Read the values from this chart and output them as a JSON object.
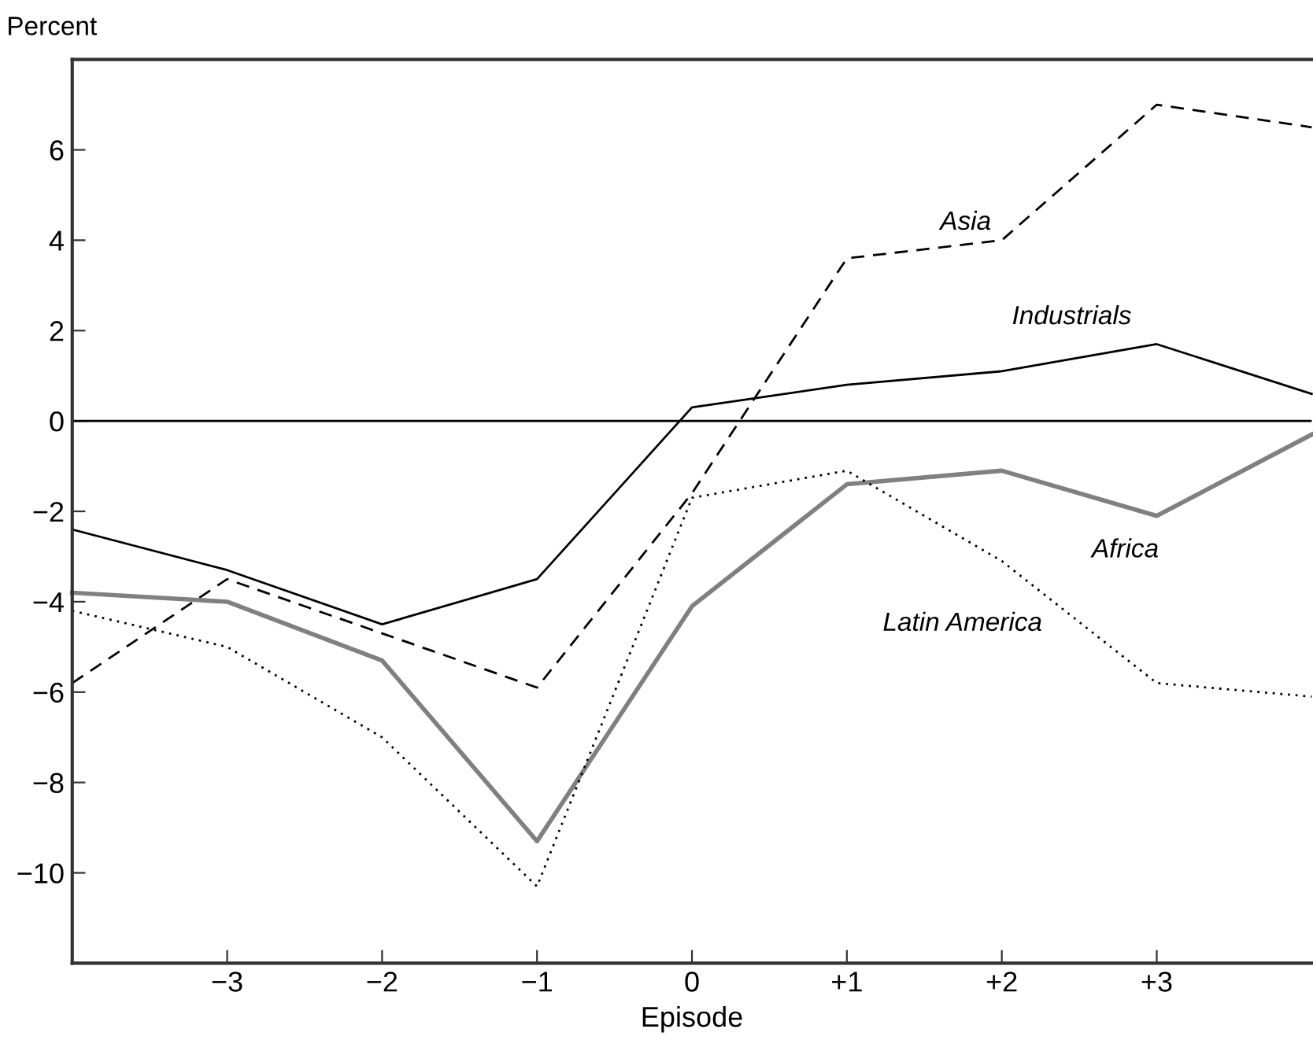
{
  "chart_data": {
    "type": "line",
    "xlabel": "Episode",
    "ylabel": "Percent",
    "x": [
      -4,
      -3,
      -2,
      -1,
      0,
      1,
      2,
      3,
      4
    ],
    "xlim": [
      -4,
      4
    ],
    "xticks": [
      {
        "value": -3,
        "label": "−3"
      },
      {
        "value": -2,
        "label": "−2"
      },
      {
        "value": -1,
        "label": "−1"
      },
      0,
      {
        "value": 1,
        "label": "+1"
      },
      {
        "value": 2,
        "label": "+2"
      },
      {
        "value": 3,
        "label": "+3"
      }
    ],
    "ylim": [
      -12,
      8
    ],
    "yticks": [
      {
        "value": -10,
        "label": "−10"
      },
      {
        "value": -8,
        "label": "−8"
      },
      {
        "value": -6,
        "label": "−6"
      },
      {
        "value": -4,
        "label": "−4"
      },
      {
        "value": -2,
        "label": "−2"
      },
      0,
      2,
      4,
      6
    ],
    "grid": false,
    "legend": false,
    "marker": "none",
    "series": [
      {
        "name": "Asia",
        "color": "#000000",
        "line_style": "dashed",
        "values": [
          -5.8,
          -3.5,
          -4.7,
          -5.9,
          -1.6,
          3.6,
          4.0,
          7.0,
          6.5
        ]
      },
      {
        "name": "Industrials",
        "color": "#000000",
        "line_style": "solid",
        "values": [
          -2.4,
          -3.3,
          -4.5,
          -3.5,
          0.3,
          0.8,
          1.1,
          1.7,
          0.6
        ]
      },
      {
        "name": "Africa",
        "color": "#808080",
        "line_style": "solid",
        "values": [
          -3.8,
          -4.0,
          -5.3,
          -9.3,
          -4.1,
          -1.4,
          -1.1,
          -2.1,
          -0.3
        ]
      },
      {
        "name": "Latin America",
        "color": "#000000",
        "line_style": "dotted",
        "values": [
          -4.2,
          -5.0,
          -7.0,
          -10.3,
          -1.7,
          -1.1,
          -3.1,
          -5.8,
          -6.1
        ]
      }
    ],
    "ref_lines": [
      {
        "axis": "y",
        "value": 0,
        "color": "#000000",
        "line_style": "solid"
      }
    ]
  }
}
